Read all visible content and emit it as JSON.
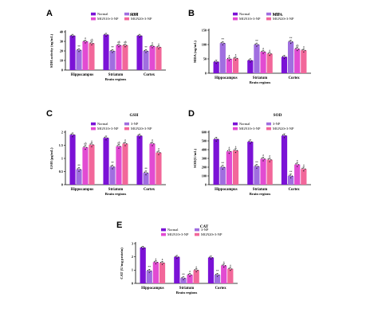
{
  "chart_data": [
    {
      "type": "bar",
      "panel": "A",
      "title": "SDH",
      "ylabel": "SDH activity (ng/mL)",
      "xlabel": "Brain regions",
      "categories": [
        "Hippocampus",
        "Striatum",
        "Cortex"
      ],
      "ylim": [
        0,
        40
      ],
      "yticks": [
        0,
        10,
        20,
        30,
        40
      ],
      "legend_position": "top",
      "series": [
        {
          "name": "Normal",
          "color": "#7b12d6",
          "values": [
            36,
            37,
            36
          ]
        },
        {
          "name": "3-NP",
          "color": "#a06ee0",
          "values": [
            21,
            20,
            20
          ]
        },
        {
          "name": "MGN10+3-NP",
          "color": "#e24bd2",
          "values": [
            30,
            26,
            25
          ]
        },
        {
          "name": "MGN20+3-NP",
          "color": "#f2679a",
          "values": [
            28,
            26,
            24
          ]
        }
      ],
      "annotations": [
        [
          "",
          "**",
          "a",
          "ab"
        ],
        [
          "",
          "**",
          "ab",
          "ab"
        ],
        [
          "",
          "**",
          "a",
          "a"
        ]
      ]
    },
    {
      "type": "bar",
      "panel": "B",
      "title": "MDA",
      "ylabel": "MDA (ng/mL)",
      "xlabel": "Brain regions",
      "categories": [
        "Hippocampus",
        "Striatum",
        "Cortex"
      ],
      "ylim": [
        0,
        150
      ],
      "yticks": [
        0,
        50,
        100,
        150
      ],
      "legend_position": "top",
      "series": [
        {
          "name": "Normal",
          "color": "#7b12d6",
          "values": [
            40,
            45,
            57
          ]
        },
        {
          "name": "3-NP",
          "color": "#a06ee0",
          "values": [
            105,
            100,
            110
          ]
        },
        {
          "name": "MGN10+3-NP",
          "color": "#e24bd2",
          "values": [
            50,
            75,
            85
          ]
        },
        {
          "name": "MGN20+3-NP",
          "color": "#f2679a",
          "values": [
            52,
            68,
            80
          ]
        }
      ],
      "annotations": [
        [
          "",
          "**",
          "a",
          "a"
        ],
        [
          "",
          "**",
          "a",
          "a"
        ],
        [
          "",
          "**",
          "ab",
          "a"
        ]
      ]
    },
    {
      "type": "bar",
      "panel": "C",
      "title": "GSH",
      "ylabel": "GSH (μg/mL)",
      "xlabel": "Brain regions",
      "categories": [
        "Hippocampus",
        "Striatum",
        "Cortex"
      ],
      "ylim": [
        0,
        2.0
      ],
      "yticks": [
        0.0,
        0.5,
        1.0,
        1.5,
        2.0
      ],
      "legend_position": "top",
      "series": [
        {
          "name": "Normal",
          "color": "#7b12d6",
          "values": [
            1.9,
            1.78,
            1.86
          ]
        },
        {
          "name": "3-NP",
          "color": "#a06ee0",
          "values": [
            0.58,
            0.68,
            0.45
          ]
        },
        {
          "name": "MGN10+3-NP",
          "color": "#e24bd2",
          "values": [
            1.42,
            1.46,
            1.56
          ]
        },
        {
          "name": "MGN20+3-NP",
          "color": "#f2679a",
          "values": [
            1.52,
            1.56,
            1.22
          ]
        }
      ],
      "annotations": [
        [
          "",
          "**",
          "ab",
          "a"
        ],
        [
          "",
          "**",
          "ab",
          "a"
        ],
        [
          "",
          "**",
          "a",
          "a"
        ]
      ]
    },
    {
      "type": "bar",
      "panel": "D",
      "title": "SOD",
      "ylabel": "SOD(U/mL)",
      "xlabel": "Brain regions",
      "categories": [
        "Hippocampus",
        "Striatum",
        "Cortex"
      ],
      "ylim": [
        0,
        600
      ],
      "yticks": [
        0,
        100,
        200,
        300,
        400,
        500,
        600
      ],
      "legend_position": "top",
      "series": [
        {
          "name": "Normal",
          "color": "#7b12d6",
          "values": [
            520,
            490,
            560
          ]
        },
        {
          "name": "3-NP",
          "color": "#a06ee0",
          "values": [
            200,
            210,
            100
          ]
        },
        {
          "name": "MGN10+3-NP",
          "color": "#e24bd2",
          "values": [
            380,
            295,
            230
          ]
        },
        {
          "name": "MGN20+3-NP",
          "color": "#f2679a",
          "values": [
            390,
            285,
            180
          ]
        }
      ],
      "annotations": [
        [
          "",
          "**",
          "a",
          "a"
        ],
        [
          "",
          "**",
          "a",
          "a"
        ],
        [
          "",
          "**",
          "a",
          "a"
        ]
      ]
    },
    {
      "type": "bar",
      "panel": "E",
      "title": "CAT",
      "ylabel": "CAT (U/mg protein)",
      "xlabel": "Brain regions",
      "categories": [
        "Hippocampus",
        "Striatum",
        "Cortex"
      ],
      "ylim": [
        0,
        3
      ],
      "yticks": [
        0,
        1,
        2,
        3
      ],
      "legend_position": "top",
      "series": [
        {
          "name": "Normal",
          "color": "#7b12d6",
          "values": [
            2.7,
            2.0,
            1.95
          ]
        },
        {
          "name": "3-NP",
          "color": "#a06ee0",
          "values": [
            0.95,
            0.4,
            0.65
          ]
        },
        {
          "name": "MGN10+3-NP",
          "color": "#e24bd2",
          "values": [
            1.6,
            0.65,
            1.35
          ]
        },
        {
          "name": "MGN20+3-NP",
          "color": "#f2679a",
          "values": [
            1.55,
            1.0,
            1.1
          ]
        }
      ],
      "annotations": [
        [
          "",
          "**",
          "a",
          "a"
        ],
        [
          "",
          "**",
          "a",
          "a"
        ],
        [
          "",
          "**",
          "a",
          "a"
        ]
      ]
    }
  ]
}
